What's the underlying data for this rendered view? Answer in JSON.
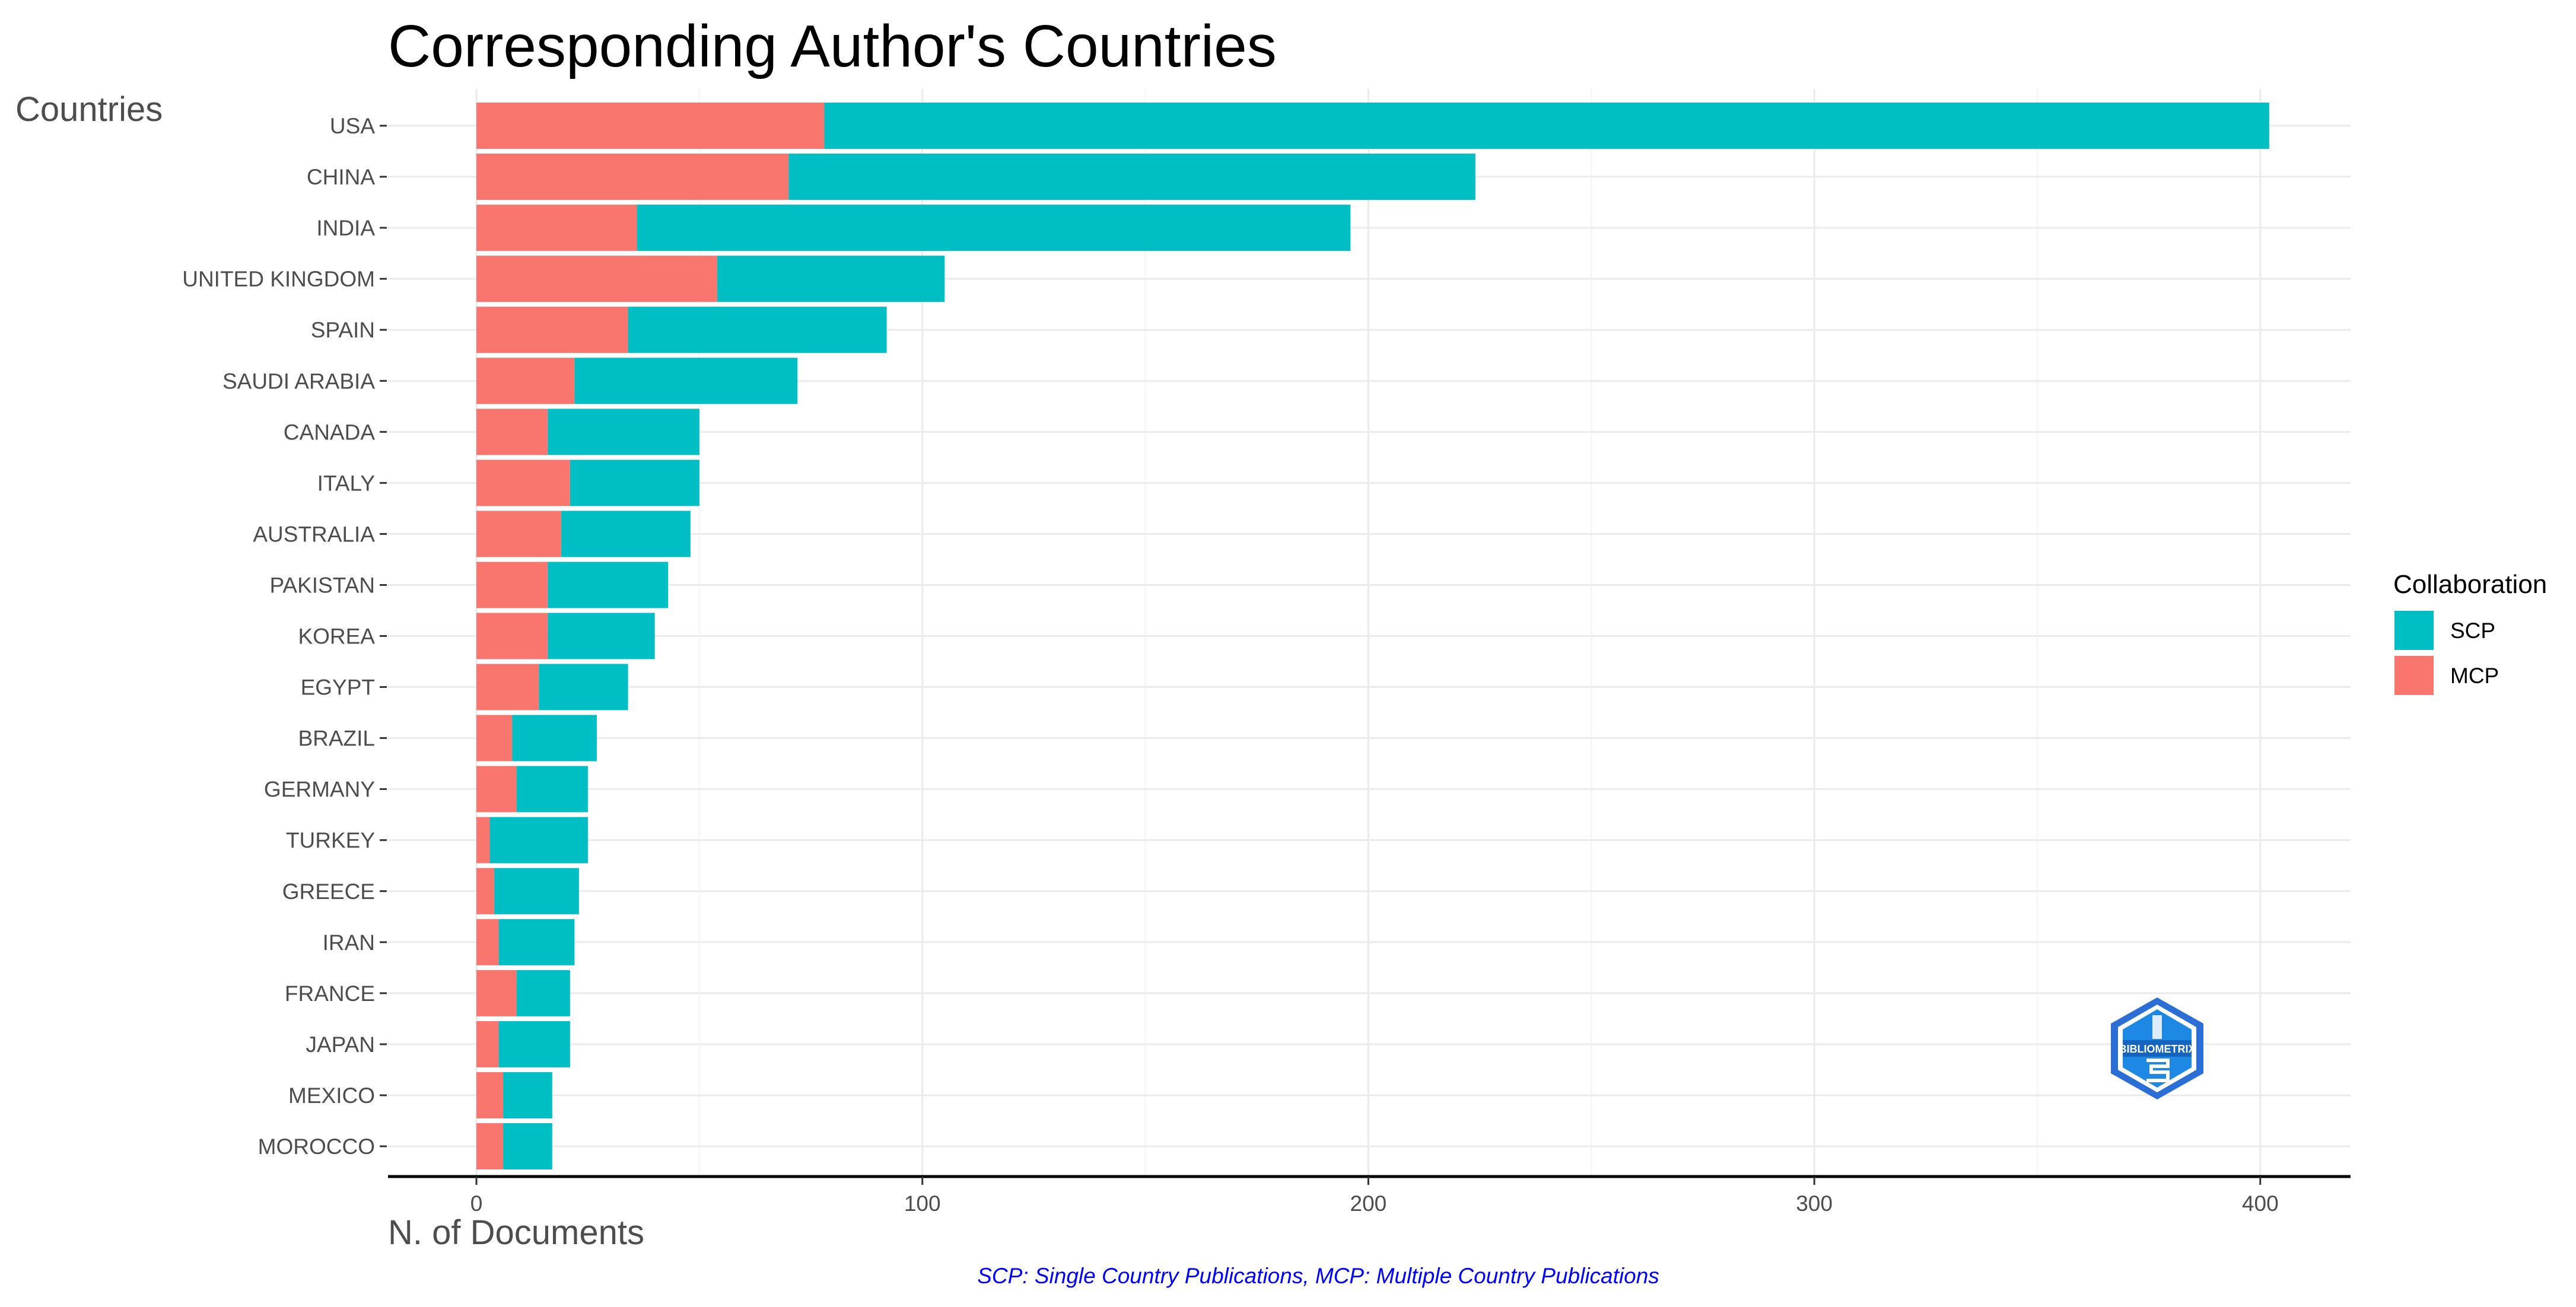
{
  "chart_data": {
    "type": "bar",
    "orientation": "horizontal",
    "stacked": true,
    "title": "Corresponding Author's Countries",
    "ylabel": "Countries",
    "xlabel": "N. of Documents",
    "caption": "SCP: Single Country Publications, MCP: Multiple Country Publications",
    "categories": [
      "USA",
      "CHINA",
      "INDIA",
      "UNITED KINGDOM",
      "SPAIN",
      "SAUDI ARABIA",
      "CANADA",
      "ITALY",
      "AUSTRALIA",
      "PAKISTAN",
      "KOREA",
      "EGYPT",
      "BRAZIL",
      "GERMANY",
      "TURKEY",
      "GREECE",
      "IRAN",
      "FRANCE",
      "JAPAN",
      "MEXICO",
      "MOROCCO"
    ],
    "series": [
      {
        "name": "MCP",
        "color": "#F8766D",
        "values": [
          78,
          70,
          36,
          54,
          34,
          22,
          16,
          21,
          19,
          16,
          16,
          14,
          8,
          9,
          3,
          4,
          5,
          9,
          5,
          6,
          6
        ]
      },
      {
        "name": "SCP",
        "color": "#00BFC4",
        "values": [
          324,
          154,
          160,
          51,
          58,
          50,
          34,
          29,
          29,
          27,
          24,
          20,
          19,
          16,
          22,
          19,
          17,
          12,
          16,
          11,
          11
        ]
      }
    ],
    "xlim": [
      -20,
      420
    ],
    "xticks": [
      0,
      100,
      200,
      300,
      400
    ],
    "grid": true,
    "legend": {
      "title": "Collaboration",
      "position": "right",
      "entries": [
        {
          "label": "SCP",
          "color": "#00BFC4"
        },
        {
          "label": "MCP",
          "color": "#F8766D"
        }
      ]
    }
  },
  "logo": {
    "text": "BIBLIOMETRIX",
    "icon": "bibliometrix-hexagon-logo",
    "color": "#2196F3"
  }
}
